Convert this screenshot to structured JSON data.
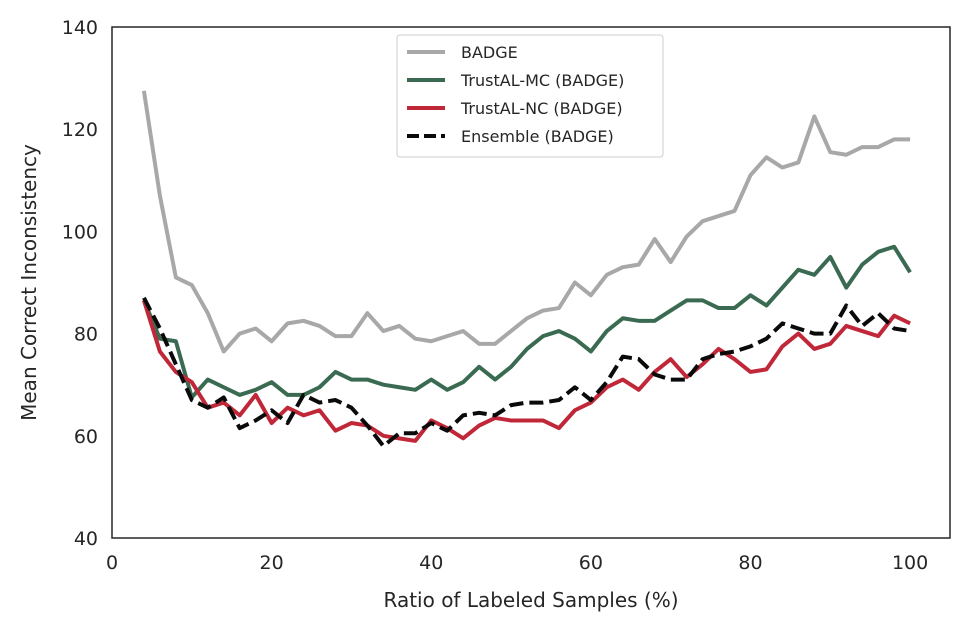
{
  "chart_data": {
    "type": "line",
    "title": "",
    "xlabel": "Ratio of Labeled Samples (%)",
    "ylabel": "Mean Correct Inconsistency",
    "xlim": [
      0,
      105
    ],
    "ylim": [
      40,
      140
    ],
    "xticks": [
      0,
      20,
      40,
      60,
      80,
      100
    ],
    "yticks": [
      40,
      60,
      80,
      100,
      120,
      140
    ],
    "grid": false,
    "legend_position": "top-center",
    "x": [
      4,
      6,
      8,
      10,
      12,
      14,
      16,
      18,
      20,
      22,
      24,
      26,
      28,
      30,
      32,
      34,
      36,
      38,
      40,
      42,
      44,
      46,
      48,
      50,
      52,
      54,
      56,
      58,
      60,
      62,
      64,
      66,
      68,
      70,
      72,
      74,
      76,
      78,
      80,
      82,
      84,
      86,
      88,
      90,
      92,
      94,
      96,
      98,
      100
    ],
    "series": [
      {
        "name": "BADGE",
        "color": "#a8a8a8",
        "style": "solid",
        "values": [
          127.5,
          107,
          91,
          89.5,
          84,
          76.5,
          80,
          81,
          78.5,
          82,
          82.5,
          81.5,
          79.5,
          79.5,
          84,
          80.5,
          81.5,
          79,
          78.5,
          79.5,
          80.5,
          78,
          78,
          80.5,
          83,
          84.5,
          85,
          90,
          87.5,
          91.5,
          93,
          93.5,
          98.5,
          94,
          99,
          102,
          103,
          104,
          111,
          114.5,
          112.5,
          113.5,
          122.5,
          115.5,
          115,
          116.5,
          116.5,
          118,
          118
        ]
      },
      {
        "name": "TrustAL-MC (BADGE)",
        "color": "#3a6b52",
        "style": "solid",
        "values": [
          86.5,
          79,
          78.5,
          67.5,
          71,
          69.5,
          68,
          69,
          70.5,
          68,
          68,
          69.5,
          72.5,
          71,
          71,
          70,
          69.5,
          69,
          71,
          69,
          70.5,
          73.5,
          71,
          73.5,
          77,
          79.5,
          80.5,
          79,
          76.5,
          80.5,
          83,
          82.5,
          82.5,
          84.5,
          86.5,
          86.5,
          85,
          85,
          87.5,
          85.5,
          89,
          92.5,
          91.5,
          95,
          89,
          93.5,
          96,
          97,
          92
        ]
      },
      {
        "name": "TrustAL-NC (BADGE)",
        "color": "#c0283a",
        "style": "solid",
        "values": [
          86.5,
          76.5,
          72.5,
          70.5,
          65.5,
          66.5,
          64,
          68,
          62.5,
          65.5,
          64,
          65,
          61,
          62.5,
          62,
          60,
          59.5,
          59,
          63,
          61.5,
          59.5,
          62,
          63.5,
          63,
          63,
          63,
          61.5,
          65,
          66.5,
          69.5,
          71,
          69,
          72.5,
          75,
          71.5,
          74,
          77,
          75,
          72.5,
          73,
          77.5,
          80,
          77,
          78,
          81.5,
          80.5,
          79.5,
          83.5,
          82
        ]
      },
      {
        "name": " Ensemble  (BADGE)",
        "color": "#0a0a0a",
        "style": "dashed",
        "values": [
          87,
          81,
          74,
          67,
          65.5,
          67.5,
          61.5,
          63,
          65,
          62.5,
          68,
          66.5,
          67,
          65.5,
          62,
          58,
          60.5,
          60.5,
          62.5,
          61,
          64,
          64.5,
          64,
          66,
          66.5,
          66.5,
          67,
          69.5,
          67,
          70.5,
          75.5,
          75,
          72,
          71,
          71,
          75,
          76,
          76.5,
          77.5,
          79,
          82,
          81,
          80,
          80,
          85.5,
          81.5,
          84,
          81,
          80.5
        ]
      }
    ]
  }
}
